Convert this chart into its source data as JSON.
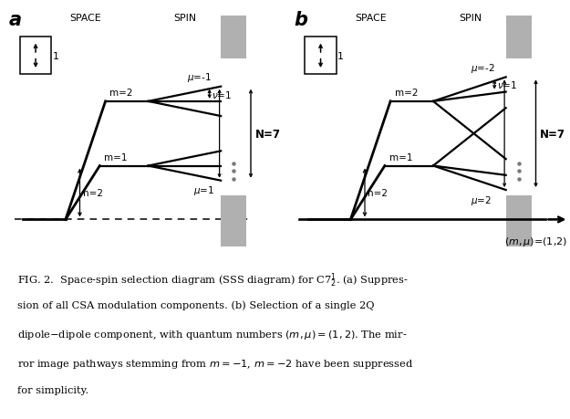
{
  "fig_width": 6.25,
  "fig_height": 4.6,
  "dpi": 100,
  "bg_color": "#ffffff",
  "gray_bar_color": "#b0b0b0",
  "line_color": "#000000",
  "lw_main": 1.6,
  "lw_dashed": 1.1,
  "panel_a": {
    "label": "a",
    "header_space": "SPACE",
    "header_spin": "SPIN",
    "m1_label": "m=1",
    "m2_label": "m=2",
    "n2_label": "n=2",
    "mu_top_label": "μ=-1",
    "nu_label": "ν=1",
    "mu_bot_label": "μ=1",
    "N_label": "N=7"
  },
  "panel_b": {
    "label": "b",
    "header_space": "SPACE",
    "header_spin": "SPIN",
    "m1_label": "m=1",
    "m2_label": "m=2",
    "n2_label": "n=2",
    "mu_top_label": "μ=-2",
    "nu_label": "ν=1",
    "mu_bot_label": "μ=2",
    "N_label": "N=7",
    "axis_label": "(m,μ)=(1,2)"
  }
}
